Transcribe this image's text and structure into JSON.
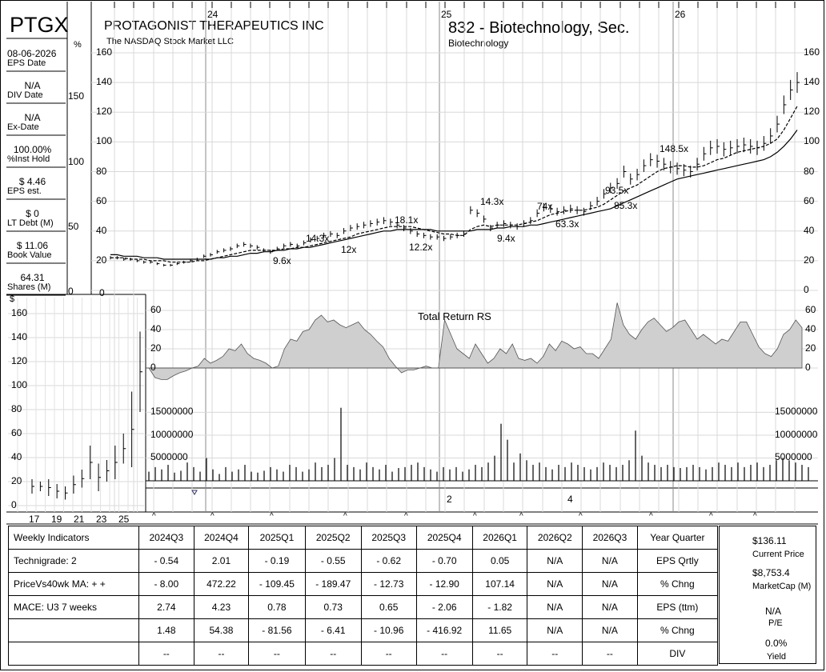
{
  "header": {
    "ticker": "PTGX",
    "company": "PROTAGONIST THERAPEUTICS INC",
    "exchange": "The NASDAQ Stock Market LLC",
    "industry": "832 - Biotechnology, Sec.",
    "sector": "Biotechnology",
    "pct_symbol": "%",
    "dollar_symbol": "$"
  },
  "left_stats": [
    {
      "value": "08-06-2026",
      "label": "EPS Date"
    },
    {
      "value": "N/A",
      "label": "DIV Date"
    },
    {
      "value": "N/A",
      "label": "Ex-Date"
    },
    {
      "value": "100.00%",
      "label": "%Inst Hold"
    },
    {
      "value": "$ 4.46",
      "label": "EPS est."
    },
    {
      "value": "$ 0",
      "label": "LT Debt (M)"
    },
    {
      "value": "$ 11.06",
      "label": "Book Value"
    },
    {
      "value": "64.31",
      "label": "Shares (M)"
    }
  ],
  "pct_ticks": [
    "150",
    "100",
    "50",
    "0"
  ],
  "chart_data": [
    {
      "type": "line",
      "name": "weekly_price",
      "x_labels": [
        "24",
        "25",
        "26"
      ],
      "ylim": [
        0,
        160
      ],
      "yticks": [
        "160",
        "140",
        "120",
        "100",
        "80",
        "60",
        "40",
        "20",
        "0"
      ],
      "series": [
        {
          "values": [
            22,
            22,
            21,
            21,
            20,
            19,
            19,
            18,
            17,
            17,
            18,
            19,
            20,
            21,
            23,
            24,
            26,
            27,
            28,
            30,
            31,
            30,
            29,
            27,
            26,
            28,
            30,
            31,
            30,
            32,
            34,
            35,
            37,
            38,
            37,
            40,
            42,
            43,
            44,
            45,
            46,
            47,
            46,
            44,
            42,
            40,
            38,
            37,
            36,
            36,
            35,
            36,
            37,
            38,
            54,
            52,
            48,
            42,
            44,
            45,
            44,
            43,
            45,
            47,
            52,
            56,
            55,
            53,
            54,
            55,
            54,
            53,
            57,
            60,
            65,
            69,
            72,
            80,
            75,
            78,
            84,
            88,
            87,
            85,
            83,
            82,
            81,
            80,
            85,
            92,
            96,
            97,
            95,
            96,
            97,
            98,
            97,
            96,
            99,
            104,
            112,
            125,
            135,
            140
          ]
        },
        {
          "values": [
            22,
            22,
            22,
            21,
            21,
            21,
            20,
            20,
            20,
            19,
            19,
            19,
            19,
            20,
            20,
            21,
            22,
            23,
            24,
            25,
            26,
            27,
            27,
            27,
            27,
            27,
            28,
            28,
            29,
            29,
            30,
            31,
            32,
            33,
            34,
            35,
            36,
            38,
            39,
            40,
            41,
            42,
            43,
            43,
            43,
            43,
            42,
            41,
            40,
            39,
            38,
            38,
            37,
            37,
            41,
            43,
            44,
            43,
            44,
            44,
            44,
            44,
            45,
            46,
            47,
            49,
            51,
            52,
            53,
            54,
            54,
            54,
            55,
            56,
            58,
            61,
            64,
            67,
            69,
            71,
            74,
            77,
            80,
            82,
            83,
            84,
            84,
            83,
            83,
            84,
            86,
            88,
            89,
            91,
            93,
            94,
            95,
            96,
            97,
            99,
            102,
            108,
            116,
            124
          ]
        },
        {
          "values": [
            24,
            24,
            23,
            23,
            23,
            22,
            22,
            22,
            21,
            21,
            21,
            21,
            21,
            21,
            21,
            21,
            22,
            22,
            23,
            23,
            24,
            25,
            25,
            26,
            26,
            27,
            27,
            28,
            28,
            29,
            29,
            30,
            31,
            32,
            33,
            34,
            35,
            36,
            37,
            38,
            39,
            40,
            40,
            41,
            41,
            41,
            41,
            41,
            41,
            40,
            40,
            40,
            40,
            40,
            40,
            41,
            41,
            41,
            42,
            42,
            43,
            43,
            43,
            44,
            44,
            45,
            46,
            47,
            48,
            49,
            50,
            51,
            52,
            53,
            54,
            55,
            57,
            59,
            61,
            63,
            65,
            67,
            69,
            71,
            73,
            75,
            76,
            77,
            78,
            79,
            80,
            81,
            82,
            83,
            84,
            85,
            86,
            87,
            88,
            90,
            93,
            97,
            102,
            108
          ]
        }
      ],
      "annotations": [
        "14.3x",
        "9.6x",
        "12x",
        "18.1x",
        "12.2x",
        "14.3x",
        "9.4x",
        "74x",
        "63.3x",
        "93.5x",
        "85.3x",
        "148.5x"
      ]
    },
    {
      "type": "area",
      "name": "total_return_rs",
      "title": "Total Return RS",
      "ylim": [
        -15,
        70
      ],
      "yticks": [
        "60",
        "40",
        "20",
        "0"
      ],
      "values": [
        0,
        -10,
        -12,
        -12,
        -8,
        -5,
        -3,
        0,
        2,
        10,
        5,
        8,
        12,
        20,
        18,
        25,
        15,
        10,
        8,
        5,
        0,
        2,
        20,
        30,
        28,
        38,
        40,
        50,
        55,
        48,
        50,
        45,
        42,
        45,
        48,
        40,
        35,
        28,
        22,
        10,
        2,
        -5,
        -2,
        -2,
        0,
        2,
        0,
        0,
        50,
        35,
        20,
        15,
        10,
        25,
        15,
        5,
        10,
        20,
        15,
        25,
        10,
        8,
        10,
        5,
        12,
        25,
        18,
        28,
        25,
        20,
        22,
        15,
        15,
        10,
        20,
        30,
        68,
        45,
        35,
        30,
        40,
        48,
        52,
        45,
        38,
        42,
        48,
        50,
        40,
        30,
        35,
        30,
        25,
        30,
        28,
        38,
        48,
        48,
        35,
        22,
        15,
        12,
        20,
        35,
        40,
        50,
        42
      ]
    },
    {
      "type": "bar",
      "name": "weekly_volume",
      "ylim": [
        0,
        17000000
      ],
      "yticks": [
        "15000000",
        "10000000",
        "5000000"
      ],
      "values": [
        2000000,
        3000000,
        2500000,
        3500000,
        1800000,
        2200000,
        4000000,
        3000000,
        2000000,
        5000000,
        2500000,
        1500000,
        3000000,
        2000000,
        2500000,
        3500000,
        2000000,
        1800000,
        2200000,
        3000000,
        2500000,
        2000000,
        3500000,
        3000000,
        2000000,
        2500000,
        4000000,
        3000000,
        3500000,
        5000000,
        16000000,
        3500000,
        3000000,
        2500000,
        4000000,
        3000000,
        2500000,
        3500000,
        2000000,
        2800000,
        3000000,
        3500000,
        4000000,
        3000000,
        2500000,
        2000000,
        3000000,
        2500000,
        3000000,
        2000000,
        2500000,
        3500000,
        3000000,
        4000000,
        5500000,
        12500000,
        9000000,
        4000000,
        6000000,
        4500000,
        3500000,
        4000000,
        3000000,
        2500000,
        3500000,
        3000000,
        4000000,
        3500000,
        3000000,
        2500000,
        3000000,
        4000000,
        3500000,
        3000000,
        3500000,
        4500000,
        11000000,
        5500000,
        4000000,
        3500000,
        3000000,
        3500000,
        3000000,
        2800000,
        3000000,
        3500000,
        3000000,
        2500000,
        3000000,
        4000000,
        3500000,
        3000000,
        4000000,
        3000000,
        3500000,
        4000000,
        3000000,
        3500000,
        4500000,
        5000000,
        4500000,
        4000000,
        3500000,
        3000000
      ]
    },
    {
      "type": "line",
      "name": "annual_price",
      "x_labels": [
        "17",
        "19",
        "21",
        "23",
        "25"
      ],
      "ylim": [
        0,
        160
      ],
      "yticks": [
        "160",
        "140",
        "120",
        "100",
        "80",
        "60",
        "40",
        "20",
        "0"
      ],
      "bars": [
        [
          10,
          22
        ],
        [
          12,
          20
        ],
        [
          8,
          22
        ],
        [
          6,
          18
        ],
        [
          5,
          16
        ],
        [
          10,
          25
        ],
        [
          15,
          30
        ],
        [
          22,
          50
        ],
        [
          12,
          35
        ],
        [
          20,
          38
        ],
        [
          22,
          50
        ],
        [
          35,
          60
        ],
        [
          32,
          95
        ],
        [
          78,
          145
        ]
      ]
    }
  ],
  "bottom_axis": {
    "quarter_marks": [
      "2",
      "4"
    ]
  },
  "table": {
    "headers": [
      "Weekly Indicators",
      "2024Q3",
      "2024Q4",
      "2025Q1",
      "2025Q2",
      "2025Q3",
      "2025Q4",
      "2026Q1",
      "2026Q2",
      "2026Q3",
      "Year Quarter"
    ],
    "rows": [
      [
        "Technigrade: 2",
        "- 0.54",
        "2.01",
        "- 0.19",
        "- 0.55",
        "- 0.62",
        "- 0.70",
        "0.05",
        "N/A",
        "N/A",
        "EPS Qrtly"
      ],
      [
        "PriceVs40wk MA:  + +",
        "- 8.00",
        "472.22",
        "- 109.45",
        "- 189.47",
        "- 12.73",
        "- 12.90",
        "107.14",
        "N/A",
        "N/A",
        "% Chng"
      ],
      [
        "MACE: U3  7 weeks",
        "2.74",
        "4.23",
        "0.78",
        "0.73",
        "0.65",
        "- 2.06",
        "- 1.82",
        "N/A",
        "N/A",
        "EPS (ttm)"
      ],
      [
        "",
        "1.48",
        "54.38",
        "- 81.56",
        "- 6.41",
        "- 10.96",
        "- 416.92",
        "11.65",
        "N/A",
        "N/A",
        "% Chng"
      ],
      [
        "",
        "--",
        "--",
        "--",
        "--",
        "--",
        "--",
        "--",
        "--",
        "--",
        "DIV"
      ]
    ]
  },
  "right_panel": {
    "price": "$136.11",
    "price_label": "Current Price",
    "mcap": "$8,753.4",
    "mcap_label": "MarketCap (M)",
    "pe": "N/A",
    "pe_label": "P/E",
    "yield": "0.0%",
    "yield_label": "Yield"
  }
}
